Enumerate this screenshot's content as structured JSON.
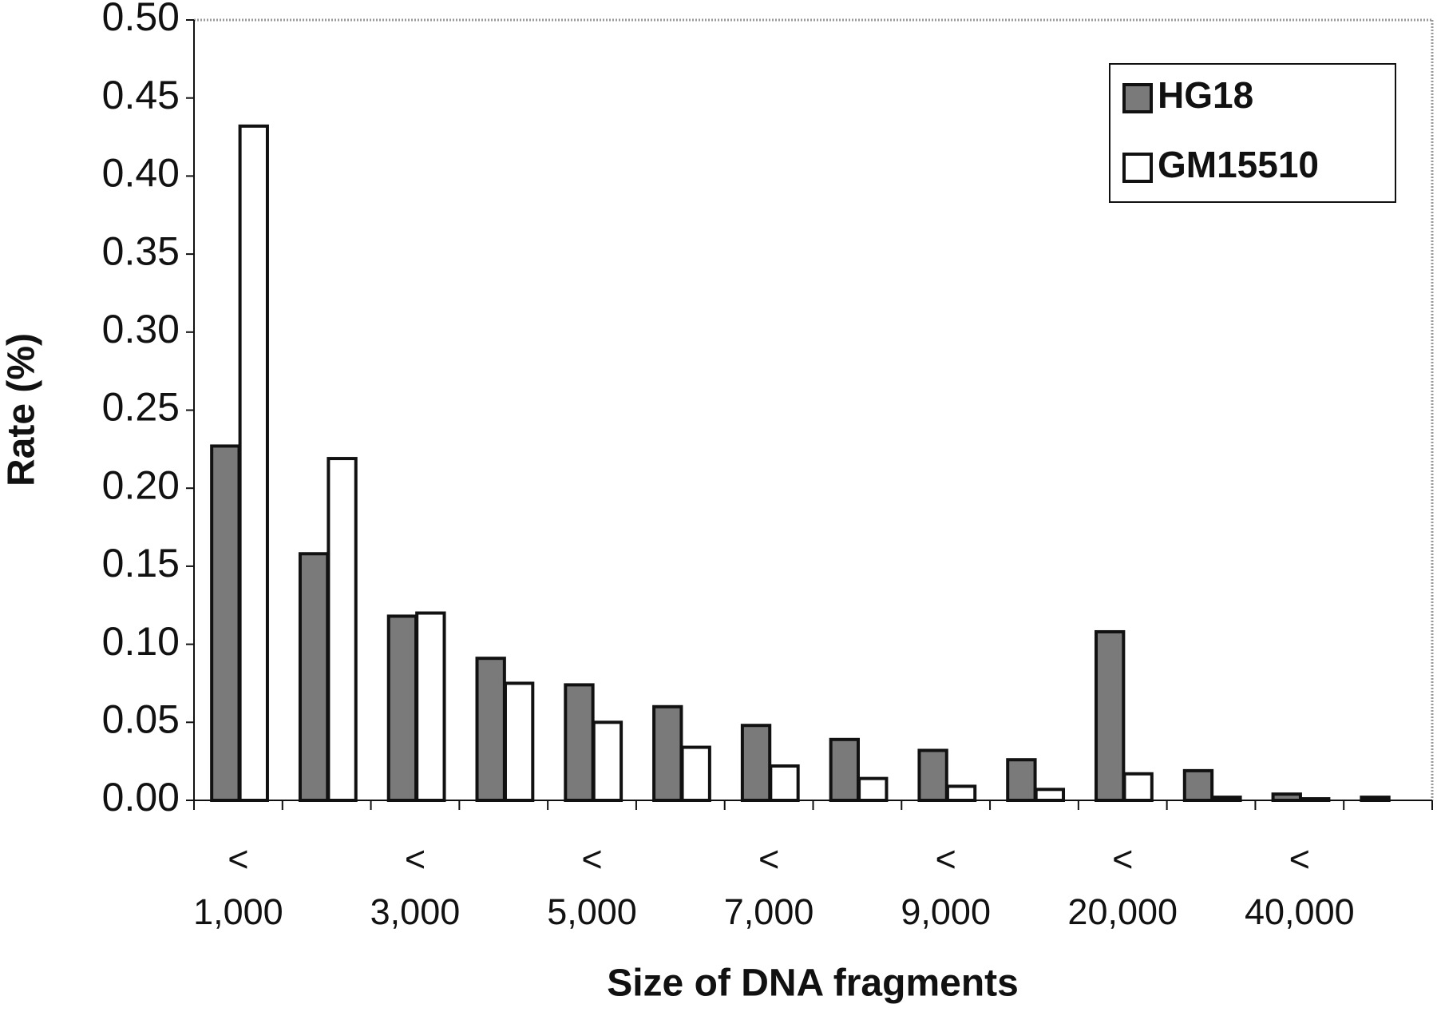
{
  "chart_data": {
    "type": "bar",
    "x_label": "Size of DNA fragments",
    "y_label": "Rate (%)",
    "categories": [
      "< 1,000",
      null,
      "< 3,000",
      null,
      "< 5,000",
      null,
      "< 7,000",
      null,
      "< 9,000",
      null,
      "< 20,000",
      null,
      "< 40,000",
      null
    ],
    "series": [
      {
        "name": "HG18",
        "color": "#7a7a7a",
        "values": [
          0.227,
          0.158,
          0.118,
          0.091,
          0.074,
          0.06,
          0.048,
          0.039,
          0.032,
          0.026,
          0.108,
          0.019,
          0.004,
          0.002
        ]
      },
      {
        "name": "GM15510",
        "color": "#ffffff",
        "values": [
          0.432,
          0.219,
          0.12,
          0.075,
          0.05,
          0.034,
          0.022,
          0.014,
          0.009,
          0.007,
          0.017,
          0.002,
          0.001,
          0.0
        ]
      }
    ],
    "ylim": [
      0,
      0.5
    ],
    "yticks": [
      {
        "value": 0,
        "label": "0.00"
      },
      {
        "value": 0.05,
        "label": "0.05"
      },
      {
        "value": 0.1,
        "label": "0.10"
      },
      {
        "value": 0.15,
        "label": "0.15"
      },
      {
        "value": 0.2,
        "label": "0.20"
      },
      {
        "value": 0.25,
        "label": "0.25"
      },
      {
        "value": 0.3,
        "label": "0.30"
      },
      {
        "value": 0.35,
        "label": "0.35"
      },
      {
        "value": 0.4,
        "label": "0.40"
      },
      {
        "value": 0.45,
        "label": "0.45"
      },
      {
        "value": 0.5,
        "label": "0.50"
      }
    ],
    "legend": "upper right"
  }
}
